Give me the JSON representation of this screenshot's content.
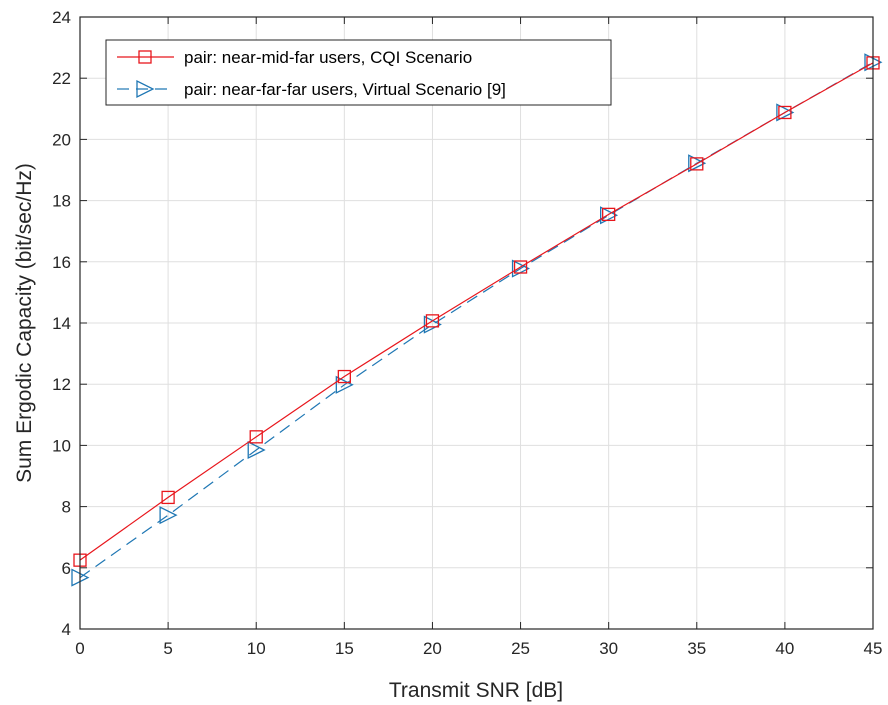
{
  "chart_data": {
    "type": "line",
    "title": "",
    "xlabel": "Transmit SNR [dB]",
    "ylabel": "Sum Ergodic Capacity (bit/sec/Hz)",
    "xlim": [
      0,
      45
    ],
    "ylim": [
      4,
      24
    ],
    "xticks": [
      "0",
      "5",
      "10",
      "15",
      "20",
      "25",
      "30",
      "35",
      "40",
      "45"
    ],
    "yticks": [
      "4",
      "6",
      "8",
      "10",
      "12",
      "14",
      "16",
      "18",
      "20",
      "22",
      "24"
    ],
    "grid": true,
    "legend_position": "top-left",
    "x": [
      0,
      5,
      10,
      15,
      20,
      25,
      30,
      35,
      40,
      45
    ],
    "series": [
      {
        "name": "pair: near-mid-far users, CQI Scenario",
        "values": [
          6.25,
          8.3,
          10.28,
          12.25,
          14.07,
          15.83,
          17.55,
          19.2,
          20.88,
          22.5
        ],
        "color": "#e8161c",
        "marker": "square",
        "line": "solid"
      },
      {
        "name": "pair: near-far-far users, Virtual Scenario [9]",
        "values": [
          5.68,
          7.72,
          9.85,
          11.98,
          13.95,
          15.78,
          17.52,
          19.22,
          20.88,
          22.52
        ],
        "color": "#1f77b4",
        "marker": "triangle-right",
        "line": "dashed"
      }
    ]
  }
}
